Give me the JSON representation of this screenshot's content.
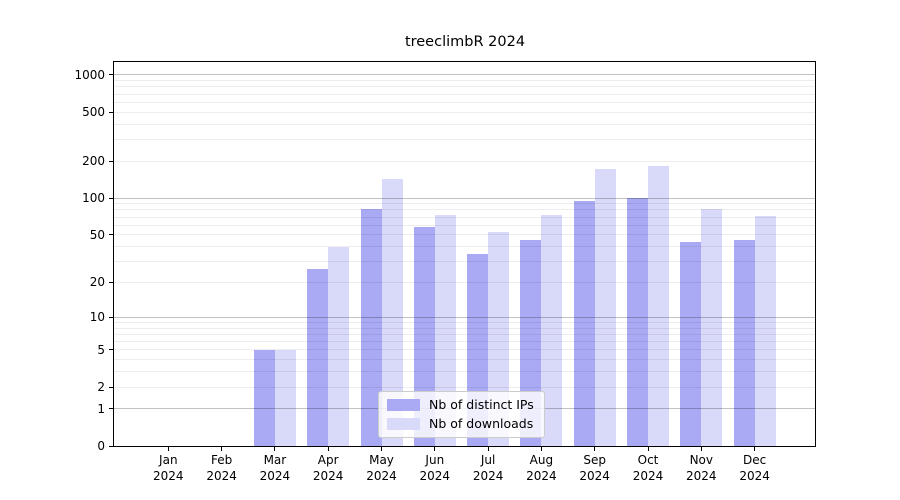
{
  "title": "treeclimbR 2024",
  "chart_data": {
    "type": "bar",
    "title": "treeclimbR 2024",
    "categories": [
      "Jan",
      "Feb",
      "Mar",
      "Apr",
      "May",
      "Jun",
      "Jul",
      "Aug",
      "Sep",
      "Oct",
      "Nov",
      "Dec"
    ],
    "year_label": "2024",
    "series": [
      {
        "name": "Nb of distinct IPs",
        "color": "#a9a9f4",
        "values": [
          0,
          0,
          5,
          26,
          82,
          58,
          35,
          45,
          95,
          100,
          44,
          45
        ]
      },
      {
        "name": "Nb of downloads",
        "color": "#d9d9f9",
        "values": [
          0,
          0,
          5,
          40,
          143,
          73,
          53,
          73,
          172,
          183,
          81,
          72
        ]
      }
    ],
    "yticks": [
      0,
      1,
      2,
      5,
      10,
      20,
      50,
      100,
      200,
      500,
      1000
    ],
    "major_grid_values": [
      1,
      10,
      100,
      1000
    ],
    "minor_grid_values": [
      2,
      3,
      4,
      5,
      6,
      7,
      8,
      9,
      20,
      30,
      40,
      50,
      60,
      70,
      80,
      90,
      200,
      300,
      400,
      500,
      600,
      700,
      800,
      900
    ],
    "scale": "log1p",
    "ylim": [
      0,
      1275
    ],
    "grid": true,
    "legend_position": "lower center",
    "colors": {
      "axis": "#000000",
      "background": "#ffffff",
      "major_grid": "#c9c9c9",
      "minor_grid": "#efefef",
      "series1": "#a9a9f4",
      "series2": "#d9d9f9"
    }
  }
}
